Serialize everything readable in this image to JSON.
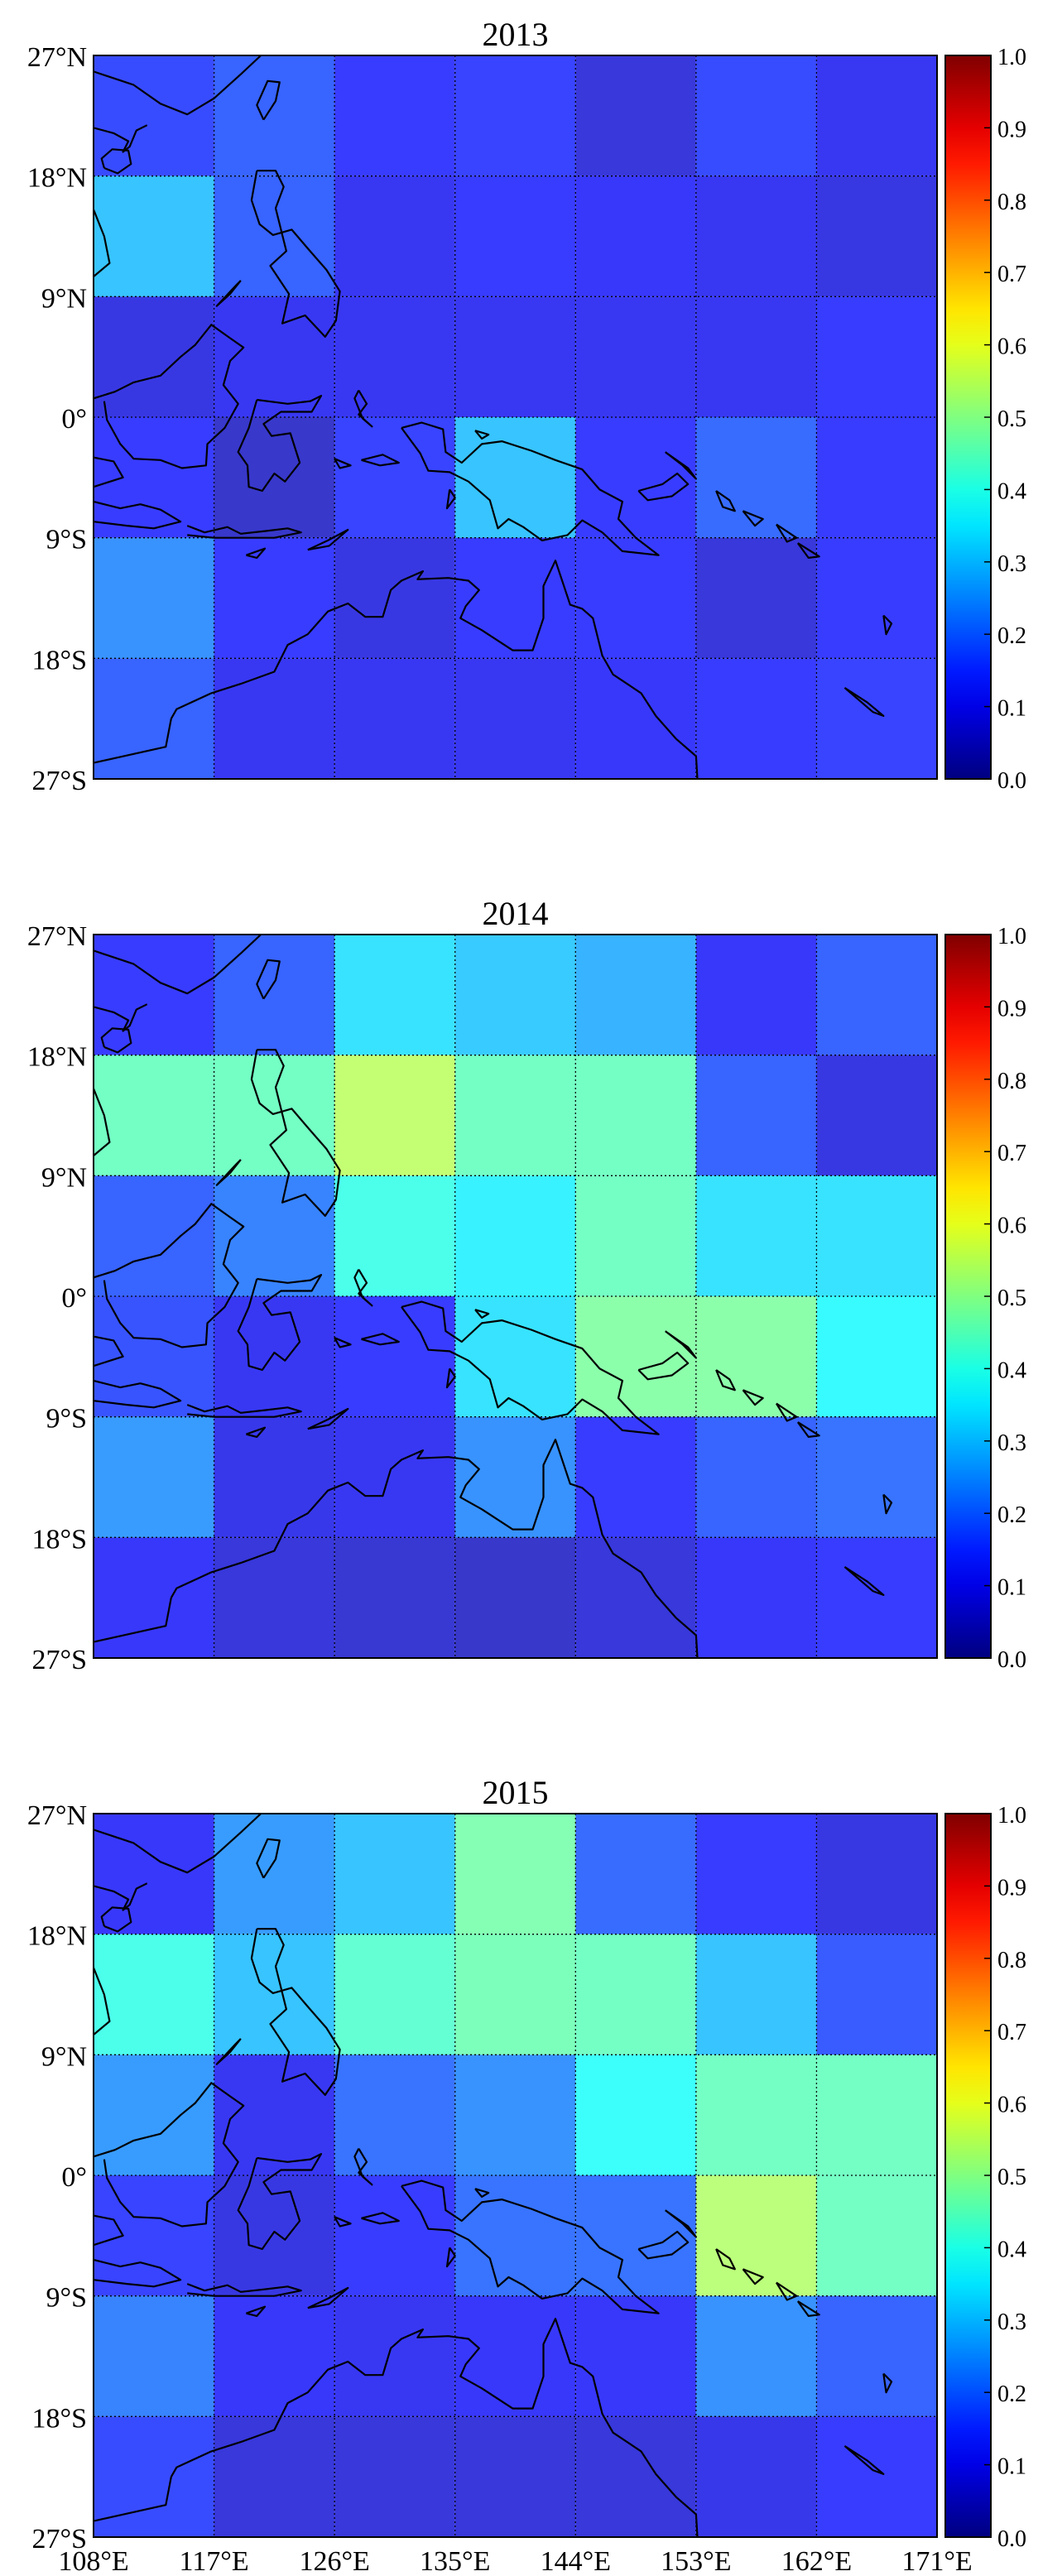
{
  "figure": {
    "lon_ticks": [
      "108°E",
      "117°E",
      "126°E",
      "135°E",
      "144°E",
      "153°E",
      "162°E",
      "171°E"
    ],
    "lat_ticks": [
      "27°N",
      "18°N",
      "9°N",
      "0°",
      "9°S",
      "18°S",
      "27°S"
    ],
    "colorbar_ticks": [
      "0.0",
      "0.1",
      "0.2",
      "0.3",
      "0.4",
      "0.5",
      "0.6",
      "0.7",
      "0.8",
      "0.9",
      "1.0"
    ]
  },
  "chart_data": [
    {
      "type": "heatmap",
      "title": "2013",
      "lon_edges": [
        108,
        117,
        126,
        135,
        144,
        153,
        162,
        171
      ],
      "lat_edges": [
        27,
        18,
        9,
        0,
        -9,
        -18,
        -27
      ],
      "vrange": [
        0.0,
        1.0
      ],
      "colormap": "jet",
      "grid": true,
      "rows": [
        [
          0.15,
          0.18,
          0.13,
          0.14,
          0.08,
          0.15,
          0.11
        ],
        [
          0.3,
          0.18,
          0.11,
          0.13,
          0.12,
          0.11,
          0.09
        ],
        [
          0.09,
          0.11,
          0.11,
          0.11,
          0.11,
          0.11,
          0.13
        ],
        [
          0.13,
          0.06,
          0.14,
          0.3,
          0.13,
          0.19,
          0.13
        ],
        [
          0.24,
          0.13,
          0.09,
          0.13,
          0.13,
          0.08,
          0.13
        ],
        [
          0.18,
          0.11,
          0.11,
          0.11,
          0.12,
          0.13,
          0.14
        ]
      ]
    },
    {
      "type": "heatmap",
      "title": "2014",
      "lon_edges": [
        108,
        117,
        126,
        135,
        144,
        153,
        162,
        171
      ],
      "lat_edges": [
        27,
        18,
        9,
        0,
        -9,
        -18,
        -27
      ],
      "vrange": [
        0.0,
        1.0
      ],
      "colormap": "jet",
      "grid": true,
      "rows": [
        [
          0.13,
          0.18,
          0.34,
          0.31,
          0.28,
          0.12,
          0.18
        ],
        [
          0.45,
          0.45,
          0.55,
          0.45,
          0.45,
          0.18,
          0.09
        ],
        [
          0.18,
          0.22,
          0.4,
          0.36,
          0.45,
          0.34,
          0.34
        ],
        [
          0.16,
          0.11,
          0.13,
          0.34,
          0.48,
          0.48,
          0.37
        ],
        [
          0.25,
          0.1,
          0.11,
          0.24,
          0.13,
          0.18,
          0.2
        ],
        [
          0.12,
          0.08,
          0.07,
          0.06,
          0.08,
          0.12,
          0.13
        ]
      ]
    },
    {
      "type": "heatmap",
      "title": "2015",
      "lon_edges": [
        108,
        117,
        126,
        135,
        144,
        153,
        162,
        171
      ],
      "lat_edges": [
        27,
        18,
        9,
        0,
        -9,
        -18,
        -27
      ],
      "vrange": [
        0.0,
        1.0
      ],
      "colormap": "jet",
      "grid": true,
      "rows": [
        [
          0.12,
          0.25,
          0.3,
          0.47,
          0.19,
          0.13,
          0.09
        ],
        [
          0.4,
          0.3,
          0.43,
          0.46,
          0.45,
          0.3,
          0.17
        ],
        [
          0.25,
          0.11,
          0.2,
          0.24,
          0.38,
          0.45,
          0.45
        ],
        [
          0.14,
          0.09,
          0.13,
          0.2,
          0.2,
          0.54,
          0.45
        ],
        [
          0.22,
          0.12,
          0.11,
          0.12,
          0.12,
          0.24,
          0.18
        ],
        [
          0.15,
          0.08,
          0.08,
          0.08,
          0.08,
          0.1,
          0.13
        ]
      ]
    }
  ]
}
